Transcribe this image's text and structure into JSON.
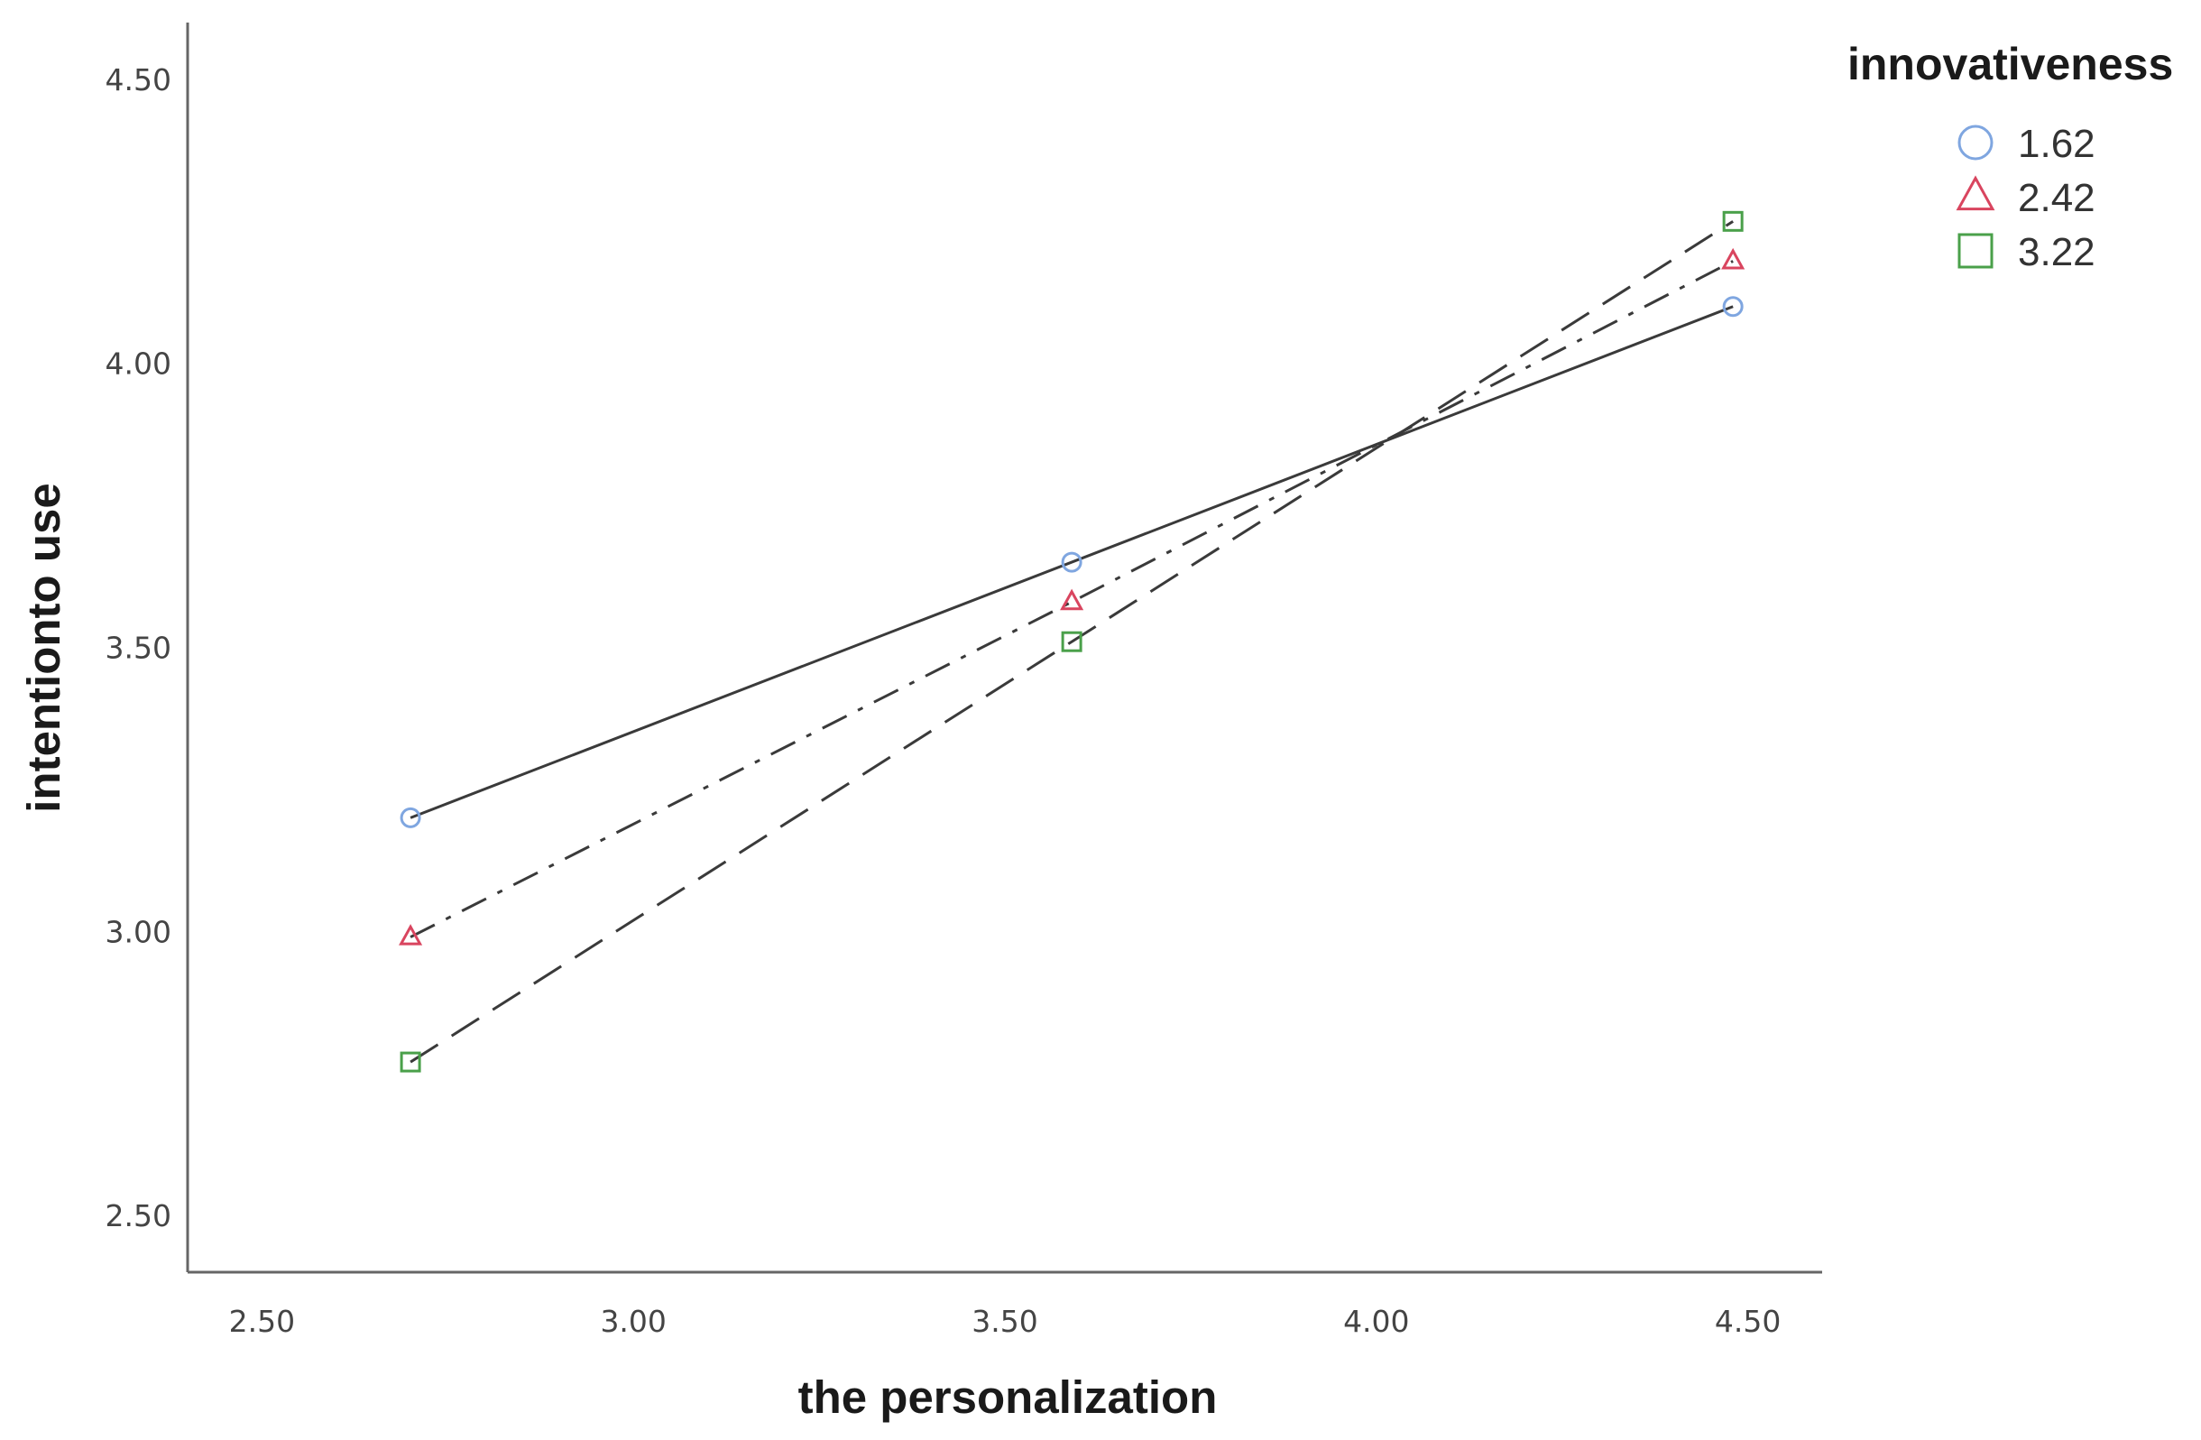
{
  "chart_data": {
    "type": "line",
    "title": "",
    "xlabel": "the personalization",
    "ylabel": "intentionto use",
    "xlim": [
      2.4,
      4.6
    ],
    "ylim": [
      2.4,
      4.6
    ],
    "x_ticks": [
      "2.50",
      "3.00",
      "3.50",
      "4.00",
      "4.50"
    ],
    "y_ticks": [
      "2.50",
      "3.00",
      "3.50",
      "4.00",
      "4.50"
    ],
    "grid": false,
    "legend_title": "innovativeness",
    "legend_position": "top-right",
    "x": [
      2.7,
      3.59,
      4.48
    ],
    "series": [
      {
        "name": "1.62",
        "marker": "circle",
        "marker_color": "#7fa6e0",
        "line_style": "solid",
        "values": [
          3.2,
          3.65,
          4.1
        ]
      },
      {
        "name": "2.42",
        "marker": "triangle",
        "marker_color": "#d9455f",
        "line_style": "dash-dot",
        "values": [
          2.99,
          3.58,
          4.18
        ]
      },
      {
        "name": "3.22",
        "marker": "square",
        "marker_color": "#4aa04a",
        "line_style": "dashed",
        "values": [
          2.77,
          3.51,
          4.25
        ]
      }
    ],
    "line_color": "#3a3a3a",
    "axis_color": "#666666"
  }
}
